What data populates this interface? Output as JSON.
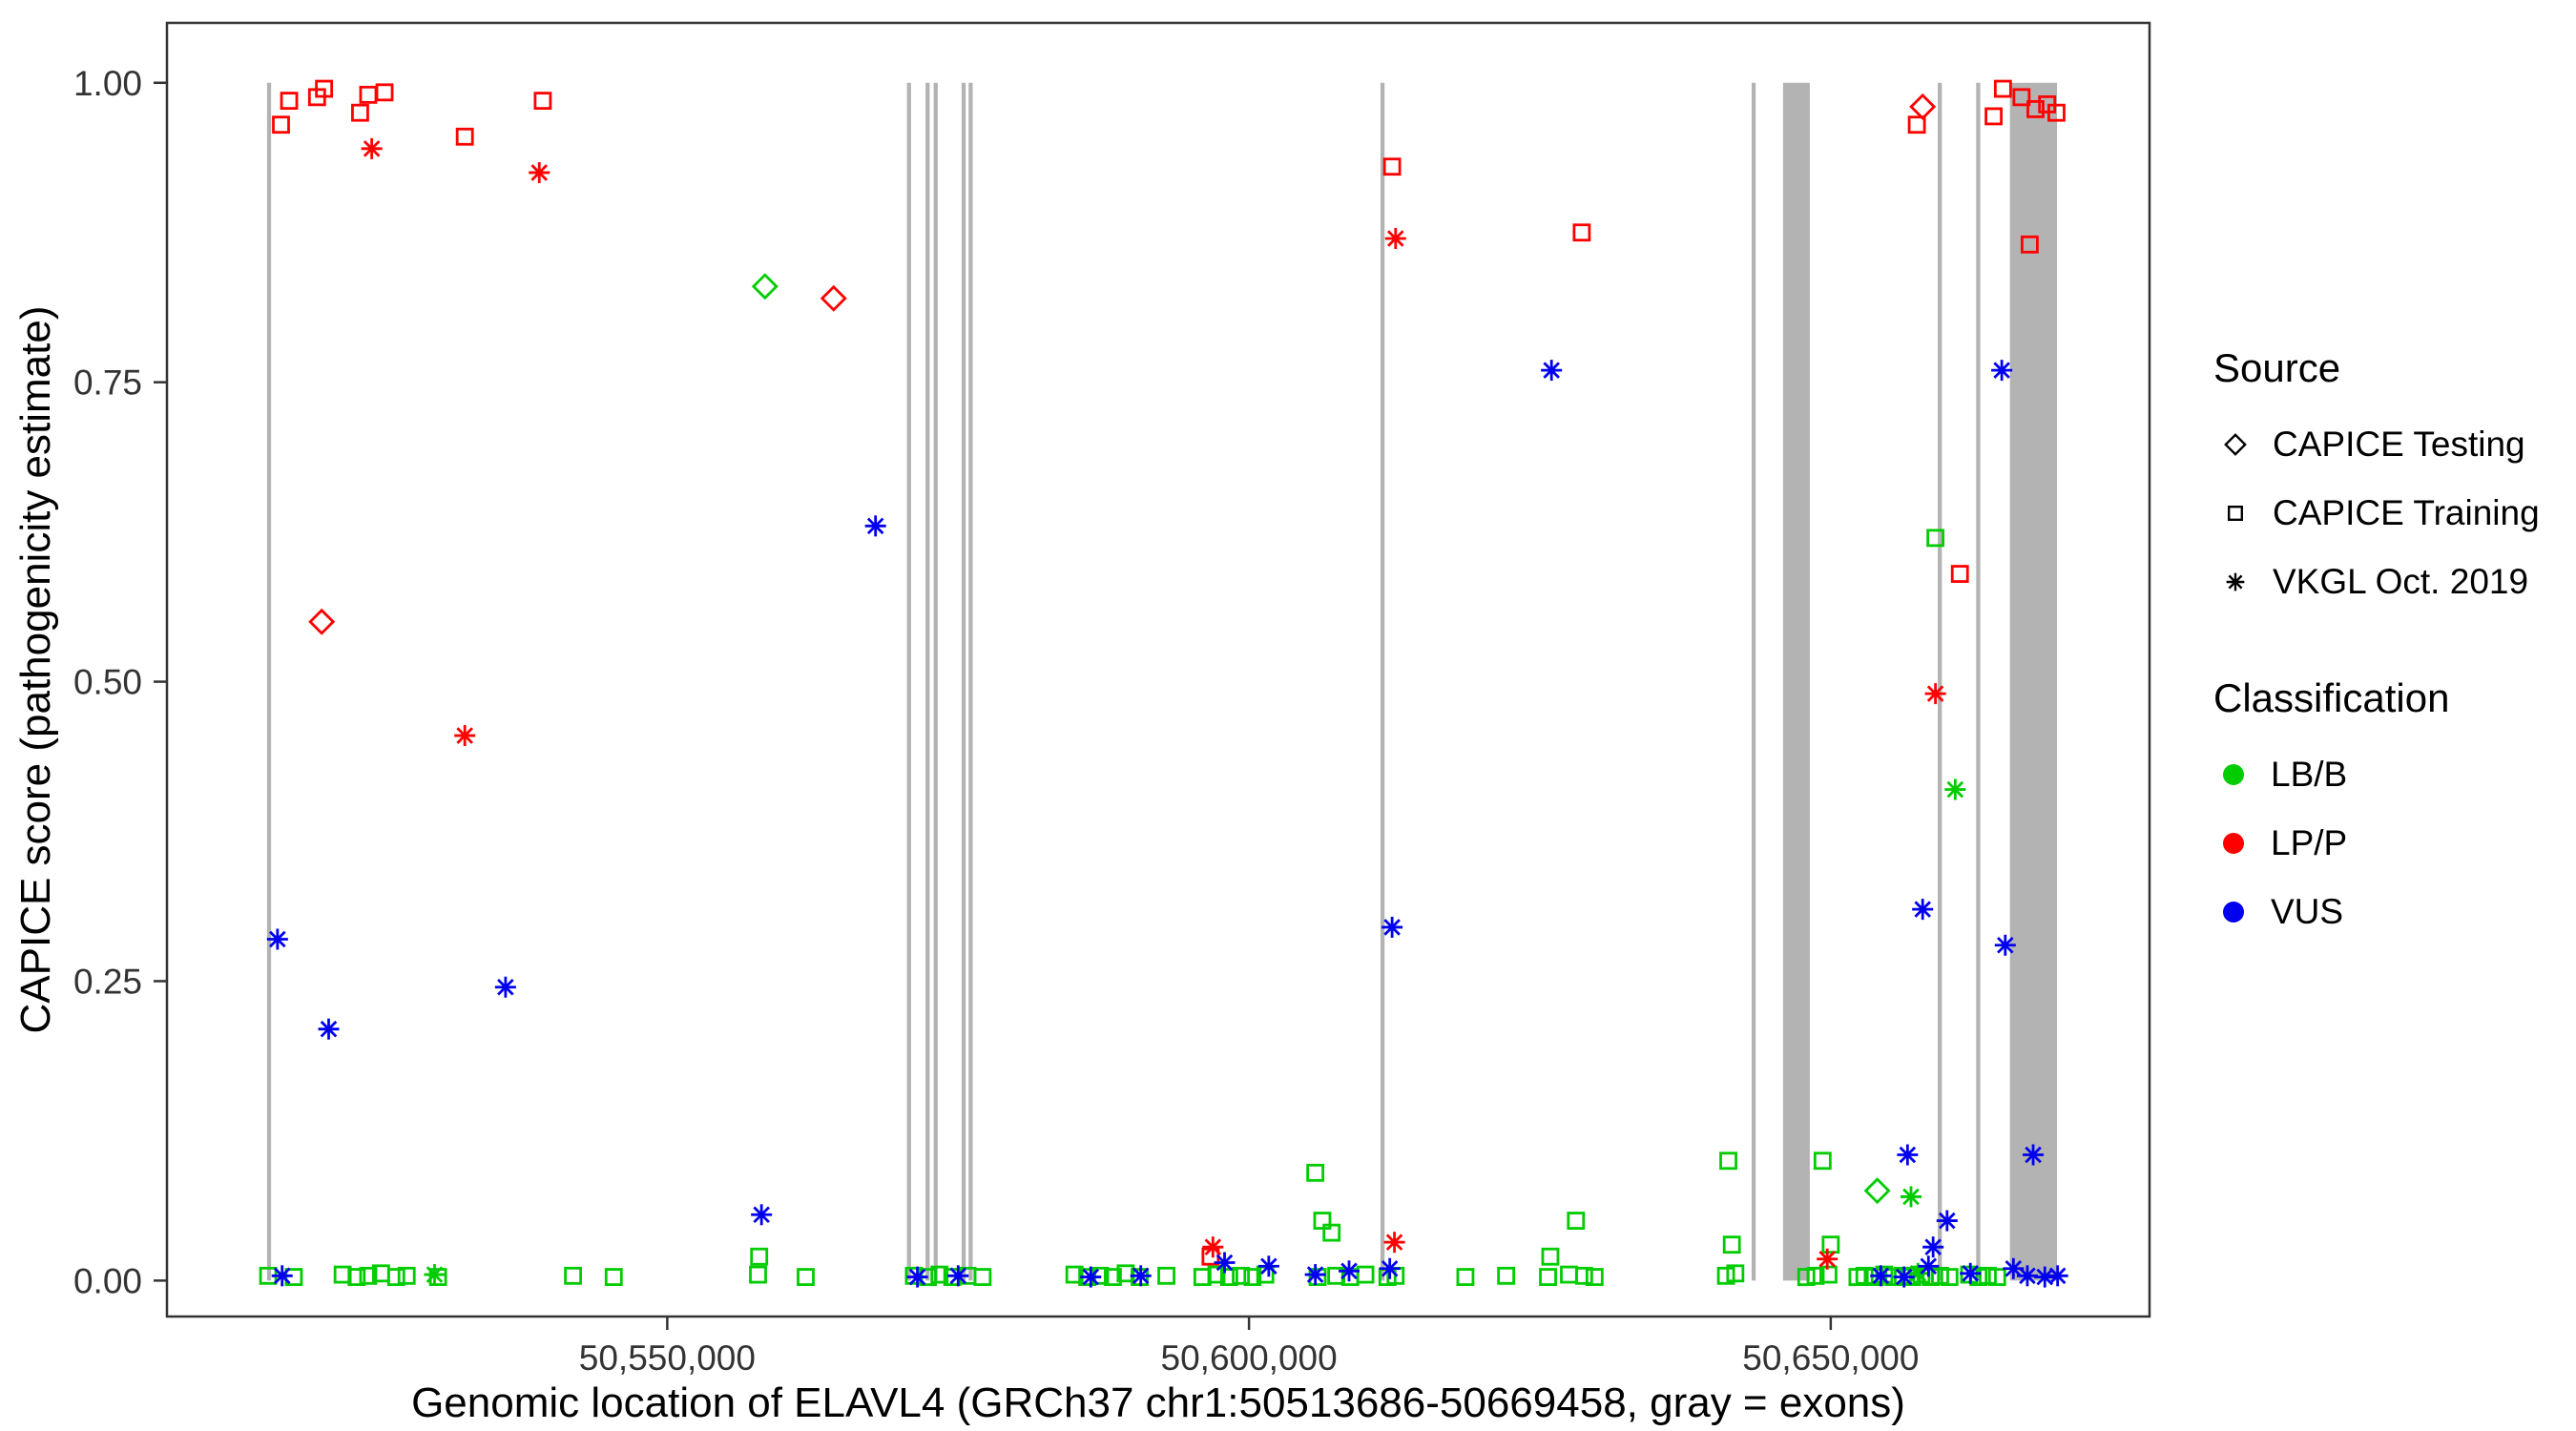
{
  "chart_data": {
    "type": "scatter",
    "title": "",
    "xlabel": "Genomic location of ELAVL4 (GRCh37 chr1:50513686-50669458, gray = exons)",
    "ylabel": "CAPICE score (pathogenicity estimate)",
    "xlim": [
      50507000,
      50677400
    ],
    "ylim": [
      -0.03,
      1.05
    ],
    "grid": false,
    "x_ticks": [
      {
        "value": 50550000,
        "label": "50,550,000"
      },
      {
        "value": 50600000,
        "label": "50,600,000"
      },
      {
        "value": 50650000,
        "label": "50,650,000"
      }
    ],
    "y_ticks": [
      {
        "value": 0.0,
        "label": "0.00"
      },
      {
        "value": 0.25,
        "label": "0.25"
      },
      {
        "value": 0.5,
        "label": "0.50"
      },
      {
        "value": 0.75,
        "label": "0.75"
      },
      {
        "value": 1.0,
        "label": "1.00"
      }
    ],
    "exon_color": "#b3b3b3",
    "exons": [
      [
        50515600,
        50515950
      ],
      [
        50570600,
        50570950
      ],
      [
        50572200,
        50572550
      ],
      [
        50572900,
        50573250
      ],
      [
        50575300,
        50575650
      ],
      [
        50575900,
        50576250
      ],
      [
        50611300,
        50611650
      ],
      [
        50643200,
        50643550
      ],
      [
        50645900,
        50648200
      ],
      [
        50659200,
        50659550
      ],
      [
        50662500,
        50662850
      ],
      [
        50665400,
        50669450
      ]
    ],
    "classification_colors": {
      "LB/B": "#00cc00",
      "LP/P": "#ff0000",
      "VUS": "#0000ee"
    },
    "source_markers": {
      "CAPICE Testing": "diamond",
      "CAPICE Training": "square",
      "VKGL Oct. 2019": "asterisk"
    },
    "series": [
      {
        "source": "CAPICE Testing",
        "classification": "LP/P",
        "points": [
          [
            50520300,
            0.55
          ],
          [
            50564300,
            0.82
          ],
          [
            50657900,
            0.98
          ]
        ]
      },
      {
        "source": "CAPICE Testing",
        "classification": "LB/B",
        "points": [
          [
            50558400,
            0.83
          ],
          [
            50654000,
            0.075
          ]
        ]
      },
      {
        "source": "CAPICE Training",
        "classification": "LP/P",
        "points": [
          [
            50516800,
            0.965
          ],
          [
            50517500,
            0.985
          ],
          [
            50519900,
            0.988
          ],
          [
            50520500,
            0.995
          ],
          [
            50523600,
            0.975
          ],
          [
            50524300,
            0.99
          ],
          [
            50525700,
            0.992
          ],
          [
            50532600,
            0.955
          ],
          [
            50539300,
            0.985
          ],
          [
            50596700,
            0.02
          ],
          [
            50612300,
            0.93
          ],
          [
            50628600,
            0.875
          ],
          [
            50657400,
            0.965
          ],
          [
            50661100,
            0.59
          ],
          [
            50664000,
            0.972
          ],
          [
            50664800,
            0.995
          ],
          [
            50666400,
            0.988
          ],
          [
            50667100,
            0.865
          ],
          [
            50667600,
            0.978
          ],
          [
            50668600,
            0.982
          ],
          [
            50669400,
            0.975
          ]
        ]
      },
      {
        "source": "CAPICE Training",
        "classification": "LB/B",
        "points": [
          [
            50557900,
            0.02
          ],
          [
            50605700,
            0.09
          ],
          [
            50606300,
            0.05
          ],
          [
            50607100,
            0.04
          ],
          [
            50625900,
            0.02
          ],
          [
            50628100,
            0.05
          ],
          [
            50641200,
            0.1
          ],
          [
            50641500,
            0.03
          ],
          [
            50649300,
            0.1
          ],
          [
            50650000,
            0.03
          ],
          [
            50659000,
            0.62
          ],
          [
            50515700,
            0.004
          ],
          [
            50517900,
            0.003
          ],
          [
            50522100,
            0.005
          ],
          [
            50523300,
            0.003
          ],
          [
            50524300,
            0.004
          ],
          [
            50525400,
            0.006
          ],
          [
            50526700,
            0.003
          ],
          [
            50527600,
            0.004
          ],
          [
            50530300,
            0.003
          ],
          [
            50541900,
            0.004
          ],
          [
            50545400,
            0.003
          ],
          [
            50557800,
            0.005
          ],
          [
            50561900,
            0.003
          ],
          [
            50571200,
            0.004
          ],
          [
            50572400,
            0.003
          ],
          [
            50573400,
            0.005
          ],
          [
            50574500,
            0.003
          ],
          [
            50575800,
            0.004
          ],
          [
            50577100,
            0.003
          ],
          [
            50585000,
            0.005
          ],
          [
            50586100,
            0.003
          ],
          [
            50587200,
            0.004
          ],
          [
            50588300,
            0.003
          ],
          [
            50589400,
            0.006
          ],
          [
            50590600,
            0.003
          ],
          [
            50592900,
            0.004
          ],
          [
            50596000,
            0.003
          ],
          [
            50597200,
            0.005
          ],
          [
            50598300,
            0.003
          ],
          [
            50599300,
            0.004
          ],
          [
            50600300,
            0.003
          ],
          [
            50601400,
            0.005
          ],
          [
            50605900,
            0.003
          ],
          [
            50607500,
            0.004
          ],
          [
            50608700,
            0.003
          ],
          [
            50610000,
            0.005
          ],
          [
            50611900,
            0.003
          ],
          [
            50612600,
            0.004
          ],
          [
            50618600,
            0.003
          ],
          [
            50622100,
            0.004
          ],
          [
            50625700,
            0.003
          ],
          [
            50627500,
            0.005
          ],
          [
            50628800,
            0.004
          ],
          [
            50629700,
            0.003
          ],
          [
            50641000,
            0.004
          ],
          [
            50641800,
            0.006
          ],
          [
            50647900,
            0.003
          ],
          [
            50648700,
            0.004
          ],
          [
            50649800,
            0.005
          ],
          [
            50652300,
            0.003
          ],
          [
            50652900,
            0.004
          ],
          [
            50653800,
            0.003
          ],
          [
            50654600,
            0.005
          ],
          [
            50655400,
            0.003
          ],
          [
            50656200,
            0.004
          ],
          [
            50657000,
            0.003
          ],
          [
            50657800,
            0.005
          ],
          [
            50658600,
            0.003
          ],
          [
            50659400,
            0.004
          ],
          [
            50660200,
            0.003
          ],
          [
            50661900,
            0.005
          ],
          [
            50662700,
            0.003
          ],
          [
            50663500,
            0.004
          ],
          [
            50664300,
            0.003
          ]
        ]
      },
      {
        "source": "VKGL Oct. 2019",
        "classification": "LP/P",
        "points": [
          [
            50524600,
            0.945
          ],
          [
            50532600,
            0.455
          ],
          [
            50539000,
            0.925
          ],
          [
            50596900,
            0.028
          ],
          [
            50612500,
            0.032
          ],
          [
            50612600,
            0.87
          ],
          [
            50649700,
            0.018
          ],
          [
            50659000,
            0.49
          ]
        ]
      },
      {
        "source": "VKGL Oct. 2019",
        "classification": "LB/B",
        "points": [
          [
            50530000,
            0.005
          ],
          [
            50656900,
            0.07
          ],
          [
            50657500,
            0.006
          ],
          [
            50660700,
            0.41
          ]
        ]
      },
      {
        "source": "VKGL Oct. 2019",
        "classification": "VUS",
        "points": [
          [
            50516500,
            0.285
          ],
          [
            50516900,
            0.004
          ],
          [
            50520900,
            0.21
          ],
          [
            50536100,
            0.245
          ],
          [
            50558100,
            0.055
          ],
          [
            50567900,
            0.63
          ],
          [
            50571500,
            0.003
          ],
          [
            50575000,
            0.004
          ],
          [
            50586400,
            0.003
          ],
          [
            50590700,
            0.004
          ],
          [
            50597900,
            0.015
          ],
          [
            50601700,
            0.012
          ],
          [
            50605700,
            0.005
          ],
          [
            50608600,
            0.008
          ],
          [
            50612100,
            0.01
          ],
          [
            50612300,
            0.295
          ],
          [
            50626000,
            0.76
          ],
          [
            50654300,
            0.004
          ],
          [
            50656300,
            0.003
          ],
          [
            50656600,
            0.105
          ],
          [
            50657900,
            0.31
          ],
          [
            50658400,
            0.012
          ],
          [
            50658800,
            0.028
          ],
          [
            50660000,
            0.05
          ],
          [
            50662000,
            0.006
          ],
          [
            50664700,
            0.76
          ],
          [
            50665000,
            0.28
          ],
          [
            50665700,
            0.01
          ],
          [
            50666900,
            0.004
          ],
          [
            50667400,
            0.105
          ],
          [
            50668400,
            0.003
          ],
          [
            50669500,
            0.004
          ]
        ]
      }
    ],
    "legend": {
      "source_title": "Source",
      "source_items": [
        {
          "label": "CAPICE Testing",
          "marker": "diamond"
        },
        {
          "label": "CAPICE Training",
          "marker": "square"
        },
        {
          "label": "VKGL Oct. 2019",
          "marker": "asterisk"
        }
      ],
      "classification_title": "Classification",
      "classification_items": [
        {
          "label": "LB/B",
          "color": "#00cc00"
        },
        {
          "label": "LP/P",
          "color": "#ff0000"
        },
        {
          "label": "VUS",
          "color": "#0000ee"
        }
      ]
    }
  }
}
